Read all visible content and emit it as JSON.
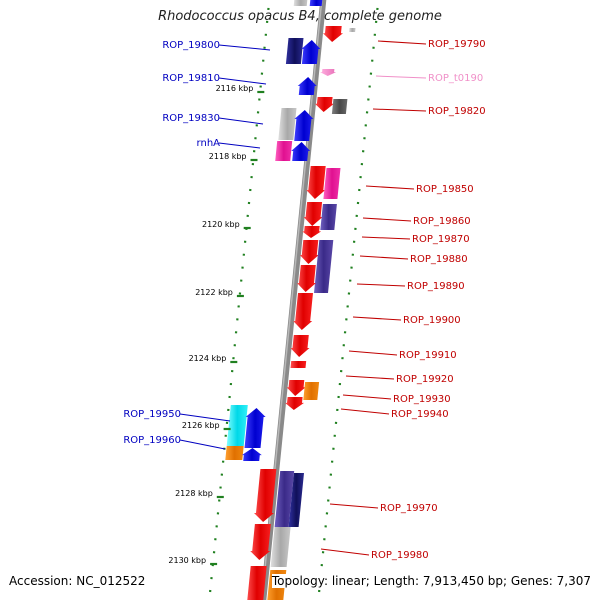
{
  "title": "Rhodococcus opacus B4, complete genome",
  "accession_label": "Accession: NC_012522",
  "summary_label": "Topology: linear; Length: 7,913,450 bp; Genes: 7,307",
  "colors": {
    "dark_navy": "#1a1a80",
    "blue": "#1010e0",
    "red": "#e81010",
    "pink_magenta": "#f020a0",
    "purple": "#5040a0",
    "light_gray": "#c0c0c0",
    "dark_gray": "#606060",
    "orange": "#f08000",
    "cyan": "#10e8f0",
    "light_pink": "#f090c8",
    "tick_green": "#208020",
    "backbone": "#888888"
  },
  "ticks": [
    {
      "label": "2116 kbp"
    },
    {
      "label": "2118 kbp"
    },
    {
      "label": "2120 kbp"
    },
    {
      "label": "2122 kbp"
    },
    {
      "label": "2124 kbp"
    },
    {
      "label": "2126 kbp"
    },
    {
      "label": "2128 kbp"
    },
    {
      "label": "2130 kbp"
    }
  ],
  "left_labels": [
    {
      "text": "ROP_19800",
      "color": "#0000c0"
    },
    {
      "text": "ROP_19810",
      "color": "#0000c0"
    },
    {
      "text": "ROP_19830",
      "color": "#0000c0"
    },
    {
      "text": "rnhA",
      "color": "#0000c0"
    },
    {
      "text": "ROP_19950",
      "color": "#0000c0"
    },
    {
      "text": "ROP_19960",
      "color": "#0000c0"
    }
  ],
  "right_labels": [
    {
      "text": "ROP_19790",
      "color": "#c00000"
    },
    {
      "text": "ROP_t0190",
      "color": "#f090c8"
    },
    {
      "text": "ROP_19820",
      "color": "#c00000"
    },
    {
      "text": "ROP_19850",
      "color": "#c00000"
    },
    {
      "text": "ROP_19860",
      "color": "#c00000"
    },
    {
      "text": "ROP_19870",
      "color": "#c00000"
    },
    {
      "text": "ROP_19880",
      "color": "#c00000"
    },
    {
      "text": "ROP_19890",
      "color": "#c00000"
    },
    {
      "text": "ROP_19900",
      "color": "#c00000"
    },
    {
      "text": "ROP_19910",
      "color": "#c00000"
    },
    {
      "text": "ROP_19920",
      "color": "#c00000"
    },
    {
      "text": "ROP_19930",
      "color": "#c00000"
    },
    {
      "text": "ROP_19940",
      "color": "#c00000"
    },
    {
      "text": "ROP_19970",
      "color": "#c00000"
    },
    {
      "text": "ROP_19980",
      "color": "#c00000"
    }
  ]
}
